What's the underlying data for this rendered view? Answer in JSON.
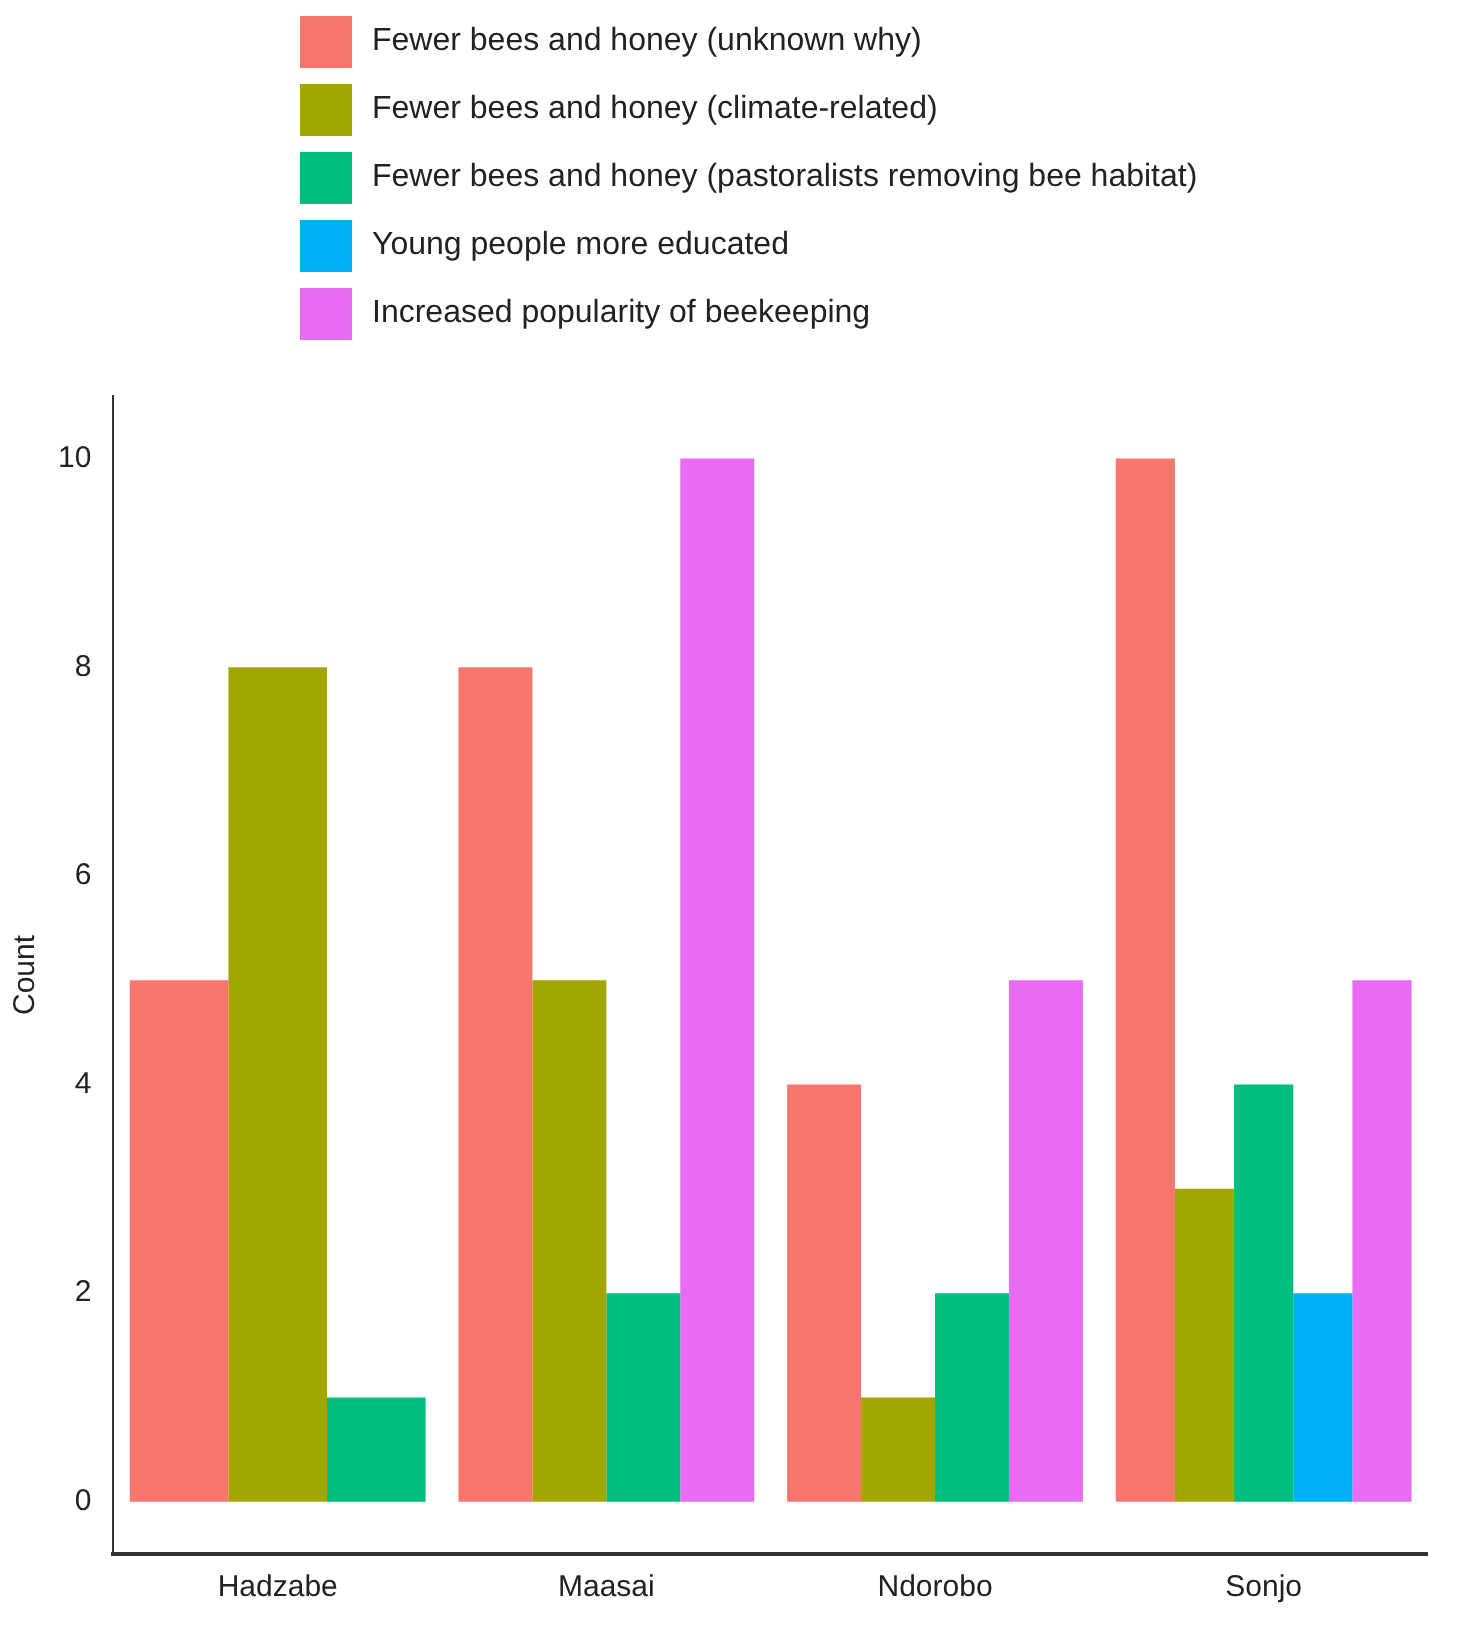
{
  "chart_data": {
    "type": "bar",
    "ylabel": "Count",
    "categories": [
      "Hadzabe",
      "Maasai",
      "Ndorobo",
      "Sonjo"
    ],
    "series": [
      {
        "name": "Fewer bees and honey (unknown why)",
        "color": "#f8766d",
        "values": [
          5,
          8,
          4,
          10
        ]
      },
      {
        "name": "Fewer bees and honey (climate-related)",
        "color": "#a3a500",
        "values": [
          8,
          5,
          1,
          3
        ]
      },
      {
        "name": "Fewer bees and honey (pastoralists removing bee habitat)",
        "color": "#00bf7d",
        "values": [
          1,
          2,
          2,
          4
        ]
      },
      {
        "name": "Young people more educated",
        "color": "#00b0f6",
        "values": [
          null,
          null,
          null,
          2
        ]
      },
      {
        "name": "Increased popularity of beekeeping",
        "color": "#e76bf3",
        "values": [
          null,
          10,
          5,
          5
        ]
      }
    ],
    "ylim": [
      -0.5,
      10.6
    ],
    "yticks": [
      0,
      2,
      4,
      6,
      8,
      10
    ],
    "grid": false,
    "legend": "top"
  }
}
